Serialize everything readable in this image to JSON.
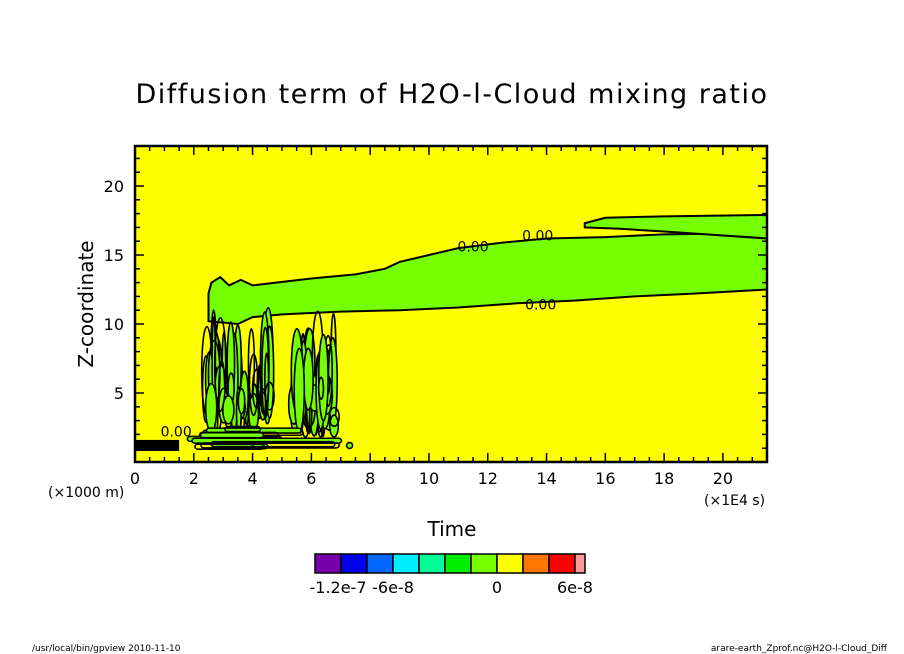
{
  "chart_data": {
    "type": "heatmap",
    "title": "Diffusion term of H2O-l-Cloud mixing ratio",
    "xlabel": "Time",
    "ylabel": "Z-coordinate",
    "x_unit": "(×1E4 s)",
    "y_unit": "(×1000 m)",
    "xlim": [
      0,
      21.5
    ],
    "ylim": [
      0,
      22.9
    ],
    "xticks": [
      0,
      2,
      4,
      6,
      8,
      10,
      12,
      14,
      16,
      18,
      20
    ],
    "yticks": [
      5,
      10,
      15,
      20
    ],
    "xtick_labels": [
      "0",
      "2",
      "4",
      "6",
      "8",
      "10",
      "12",
      "14",
      "16",
      "18",
      "20"
    ],
    "ytick_labels": [
      "5",
      "10",
      "15",
      "20"
    ],
    "background_color": "#ffff00",
    "contour_labels": [
      {
        "text": "0.00",
        "x": 11.5,
        "y": 15.7
      },
      {
        "text": "0.00",
        "x": 13.7,
        "y": 16.5
      },
      {
        "text": "0.00",
        "x": 13.8,
        "y": 11.5
      },
      {
        "text": "0.00",
        "x": 1.4,
        "y": 2.3
      }
    ],
    "regions": [
      {
        "name": "upper-band",
        "color": "#76ff00",
        "upper": [
          [
            2.5,
            12.2
          ],
          [
            2.6,
            13.0
          ],
          [
            2.9,
            13.4
          ],
          [
            3.2,
            12.8
          ],
          [
            3.6,
            13.2
          ],
          [
            4.0,
            12.8
          ],
          [
            4.8,
            13.0
          ],
          [
            6.0,
            13.3
          ],
          [
            7.5,
            13.6
          ],
          [
            8.5,
            14.0
          ],
          [
            9.0,
            14.5
          ],
          [
            10.0,
            15.0
          ],
          [
            11.0,
            15.5
          ],
          [
            12.5,
            15.9
          ],
          [
            14.0,
            16.2
          ],
          [
            16.0,
            16.3
          ],
          [
            18.0,
            16.5
          ],
          [
            21.5,
            16.6
          ]
        ],
        "lower": [
          [
            2.5,
            10.2
          ],
          [
            3.5,
            10.0
          ],
          [
            4.0,
            10.5
          ],
          [
            5.0,
            10.7
          ],
          [
            7.0,
            10.9
          ],
          [
            9.0,
            11.0
          ],
          [
            11.0,
            11.2
          ],
          [
            13.0,
            11.5
          ],
          [
            15.0,
            11.7
          ],
          [
            17.0,
            12.0
          ],
          [
            19.0,
            12.2
          ],
          [
            21.5,
            12.5
          ]
        ]
      },
      {
        "name": "upper-tongue",
        "color": "#76ff00",
        "upper": [
          [
            15.3,
            17.3
          ],
          [
            16.0,
            17.7
          ],
          [
            18.0,
            17.8
          ],
          [
            21.5,
            17.9
          ]
        ],
        "lower": [
          [
            15.3,
            17.0
          ],
          [
            16.5,
            16.9
          ],
          [
            18.0,
            16.7
          ],
          [
            21.5,
            16.2
          ]
        ]
      }
    ],
    "legend": {
      "colors": [
        "#7700aa",
        "#0000ee",
        "#0066ff",
        "#00eeff",
        "#00ff99",
        "#00ee00",
        "#76ff00",
        "#ffff00",
        "#ff7700",
        "#ff0000",
        "#ff9999"
      ],
      "tick_labels": [
        "-1.2e-7",
        "-6e-8",
        "0",
        "6e-8"
      ]
    }
  },
  "footer": {
    "left": "/usr/local/bin/gpview   2010-11-10",
    "right": "arare-earth_Zprof.nc@H2O-l-Cloud_Diff"
  }
}
